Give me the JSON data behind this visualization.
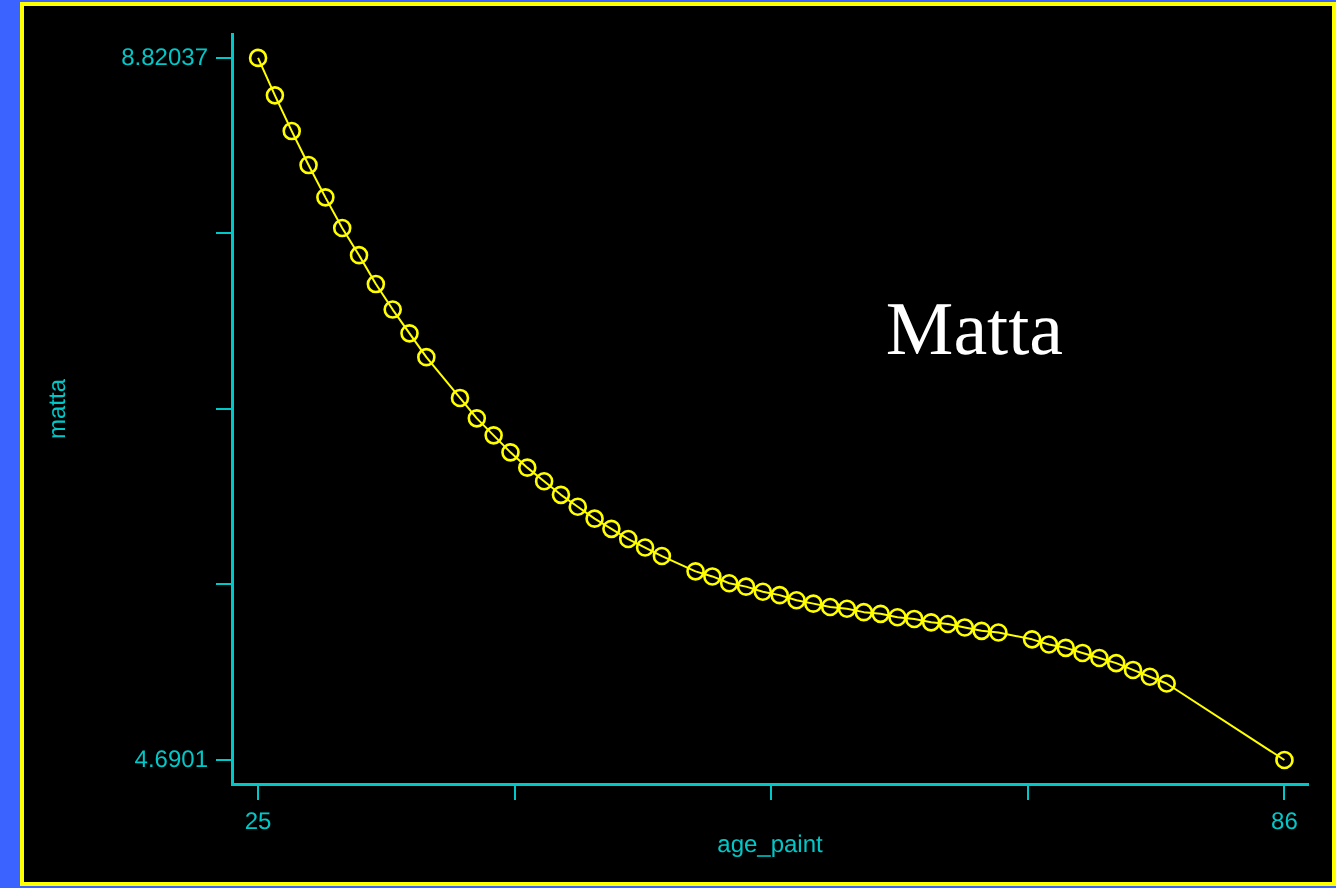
{
  "chart_data": {
    "type": "line",
    "xlabel": "age_paint",
    "ylabel": "matta",
    "annotations": [
      "Matta"
    ],
    "x": [
      25,
      26,
      27,
      28,
      29,
      30,
      31,
      32,
      33,
      34,
      35,
      37,
      38,
      39,
      40,
      41,
      42,
      43,
      44,
      45,
      46,
      47,
      48,
      49,
      51,
      52,
      53,
      54,
      55,
      56,
      57,
      58,
      59,
      60,
      61,
      62,
      63,
      64,
      65,
      66,
      67,
      68,
      69,
      71,
      72,
      73,
      74,
      75,
      76,
      77,
      78,
      79,
      86
    ],
    "series": [
      {
        "color": "#ffff00",
        "values": [
          8.82037,
          8.6,
          8.39,
          8.19,
          8.0,
          7.82,
          7.66,
          7.49,
          7.34,
          7.2,
          7.06,
          6.82,
          6.7,
          6.6,
          6.5,
          6.41,
          6.33,
          6.25,
          6.18,
          6.11,
          6.05,
          5.99,
          5.94,
          5.89,
          5.8,
          5.77,
          5.73,
          5.71,
          5.68,
          5.66,
          5.63,
          5.61,
          5.59,
          5.58,
          5.56,
          5.55,
          5.53,
          5.52,
          5.5,
          5.49,
          5.47,
          5.45,
          5.44,
          5.4,
          5.37,
          5.35,
          5.32,
          5.29,
          5.26,
          5.22,
          5.18,
          5.14,
          4.6901
        ]
      }
    ],
    "xlim": [
      23.45,
      87.4
    ],
    "ylim": [
      4.549,
      8.961
    ],
    "xticks": [
      25,
      {
        "value": 40.25,
        "label": null
      },
      {
        "value": 55.5,
        "label": null
      },
      {
        "value": 70.75,
        "label": null
      },
      86
    ],
    "yticks": [
      4.6901,
      {
        "value": 5.72267,
        "label": null
      },
      {
        "value": 6.75524,
        "label": null
      },
      {
        "value": 7.7878,
        "label": null
      },
      8.82037
    ],
    "grid": false,
    "legend": false,
    "marker": "circle",
    "line_style": "solid"
  }
}
